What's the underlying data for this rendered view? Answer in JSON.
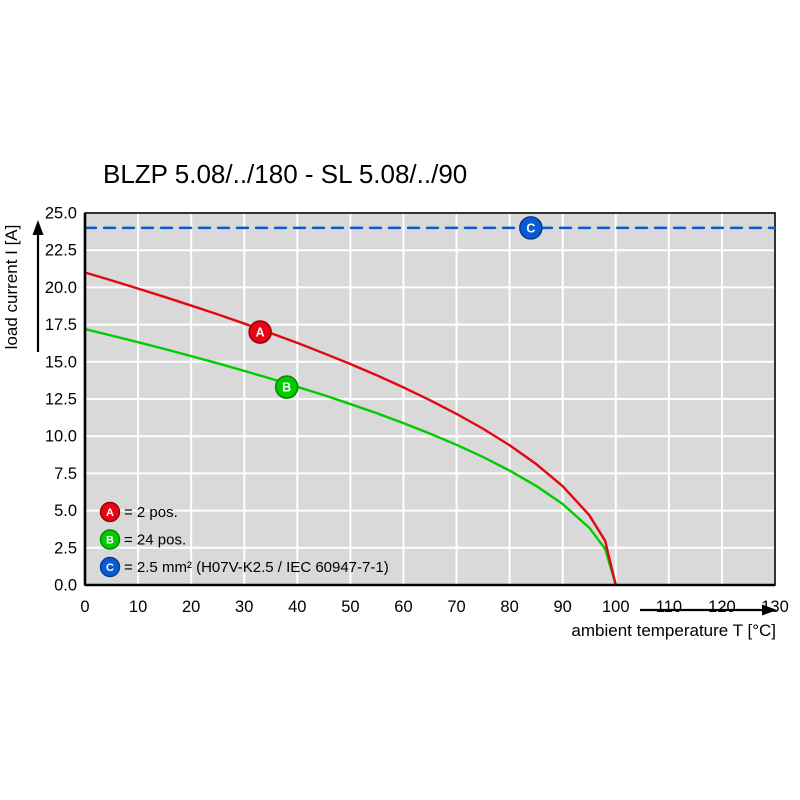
{
  "page": {
    "background": "#ffffff"
  },
  "chart_data": {
    "type": "line",
    "title": "BLZP 5.08/../180 - SL 5.08/../90",
    "xlabel": "ambient temperature T [°C]",
    "ylabel": "load current I [A]",
    "xlim": [
      0,
      130
    ],
    "ylim": [
      0,
      25
    ],
    "xticks": [
      0,
      10,
      20,
      30,
      40,
      50,
      60,
      70,
      80,
      90,
      100,
      110,
      120,
      130
    ],
    "yticks": [
      0,
      2.5,
      5,
      7.5,
      10,
      12.5,
      15,
      17.5,
      20,
      22.5,
      25
    ],
    "grid": true,
    "legend_position": "lower-left-inside",
    "colors": {
      "plot_bg": "#d9d9d9",
      "grid": "#ffffff",
      "axis": "#000000"
    },
    "series": [
      {
        "name": "A",
        "label": "= 2 pos.",
        "color": "#e30613",
        "edge": "#9b0008",
        "style": "solid",
        "marker": {
          "x": 33,
          "y": 17
        },
        "x": [
          0,
          5,
          10,
          15,
          20,
          25,
          30,
          35,
          40,
          45,
          50,
          55,
          60,
          65,
          70,
          75,
          80,
          85,
          90,
          95,
          98,
          100
        ],
        "y": [
          21.0,
          20.47,
          19.92,
          19.36,
          18.78,
          18.19,
          17.57,
          16.93,
          16.27,
          15.57,
          14.85,
          14.09,
          13.28,
          12.42,
          11.5,
          10.5,
          9.39,
          8.13,
          6.64,
          4.7,
          2.97,
          0.0
        ]
      },
      {
        "name": "B",
        "label": "= 24 pos.",
        "color": "#00cc00",
        "edge": "#008a00",
        "style": "solid",
        "marker": {
          "x": 38,
          "y": 13.3
        },
        "x": [
          0,
          5,
          10,
          15,
          20,
          25,
          30,
          35,
          40,
          45,
          50,
          55,
          60,
          65,
          70,
          75,
          80,
          85,
          90,
          95,
          98,
          100
        ],
        "y": [
          17.2,
          16.76,
          16.32,
          15.86,
          15.38,
          14.9,
          14.39,
          13.87,
          13.32,
          12.76,
          12.16,
          11.54,
          10.88,
          10.17,
          9.42,
          8.6,
          7.69,
          6.66,
          5.44,
          3.85,
          2.43,
          0.0
        ]
      },
      {
        "name": "C",
        "label": "= 2.5 mm² (H07V-K2.5 / IEC 60947-7-1)",
        "color": "#0a5bd3",
        "edge": "#063c91",
        "style": "dashed",
        "marker": {
          "x": 84,
          "y": 24
        },
        "x": [
          0,
          130
        ],
        "y": [
          24,
          24
        ]
      }
    ]
  }
}
